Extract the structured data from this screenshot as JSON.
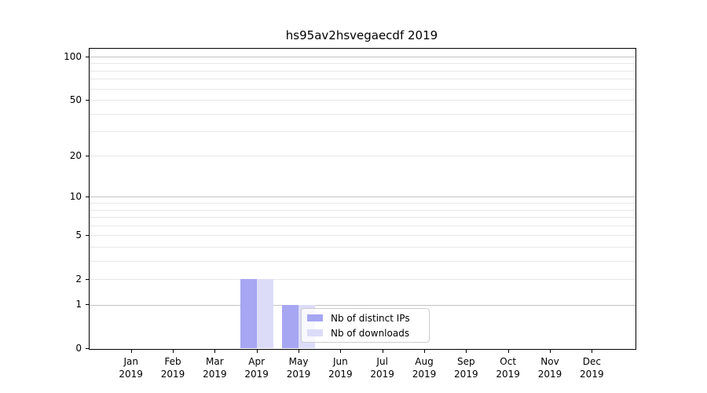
{
  "chart_data": {
    "type": "bar",
    "title": "hs95av2hsvegaecdf 2019",
    "categories": [
      {
        "month": "Jan",
        "year": "2019"
      },
      {
        "month": "Feb",
        "year": "2019"
      },
      {
        "month": "Mar",
        "year": "2019"
      },
      {
        "month": "Apr",
        "year": "2019"
      },
      {
        "month": "May",
        "year": "2019"
      },
      {
        "month": "Jun",
        "year": "2019"
      },
      {
        "month": "Jul",
        "year": "2019"
      },
      {
        "month": "Aug",
        "year": "2019"
      },
      {
        "month": "Sep",
        "year": "2019"
      },
      {
        "month": "Oct",
        "year": "2019"
      },
      {
        "month": "Nov",
        "year": "2019"
      },
      {
        "month": "Dec",
        "year": "2019"
      }
    ],
    "series": [
      {
        "name": "Nb of distinct IPs",
        "color": "#a6a6f2",
        "values": [
          0,
          0,
          0,
          2,
          1,
          0,
          0,
          0,
          0,
          0,
          0,
          0
        ]
      },
      {
        "name": "Nb of downloads",
        "color": "#dcdcf9",
        "values": [
          0,
          0,
          0,
          2,
          1,
          0,
          0,
          0,
          0,
          0,
          0,
          0
        ]
      }
    ],
    "xlabel": "",
    "ylabel": "",
    "y_scale": "log1p",
    "y_ticks": [
      0,
      1,
      2,
      5,
      10,
      20,
      50,
      100
    ],
    "ylim": [
      0,
      113
    ],
    "grid": {
      "major_values": [
        1,
        10,
        100
      ],
      "minor_values": [
        2,
        3,
        4,
        5,
        6,
        7,
        8,
        9,
        20,
        30,
        40,
        50,
        60,
        70,
        80,
        90
      ],
      "major_color": "#c3c3c3",
      "minor_color": "#e8e8e8"
    },
    "legend": {
      "position": "lower right of plot, over May bars",
      "border_color": "#cccccc",
      "background": "rgba(255,255,255,0.8)"
    }
  }
}
